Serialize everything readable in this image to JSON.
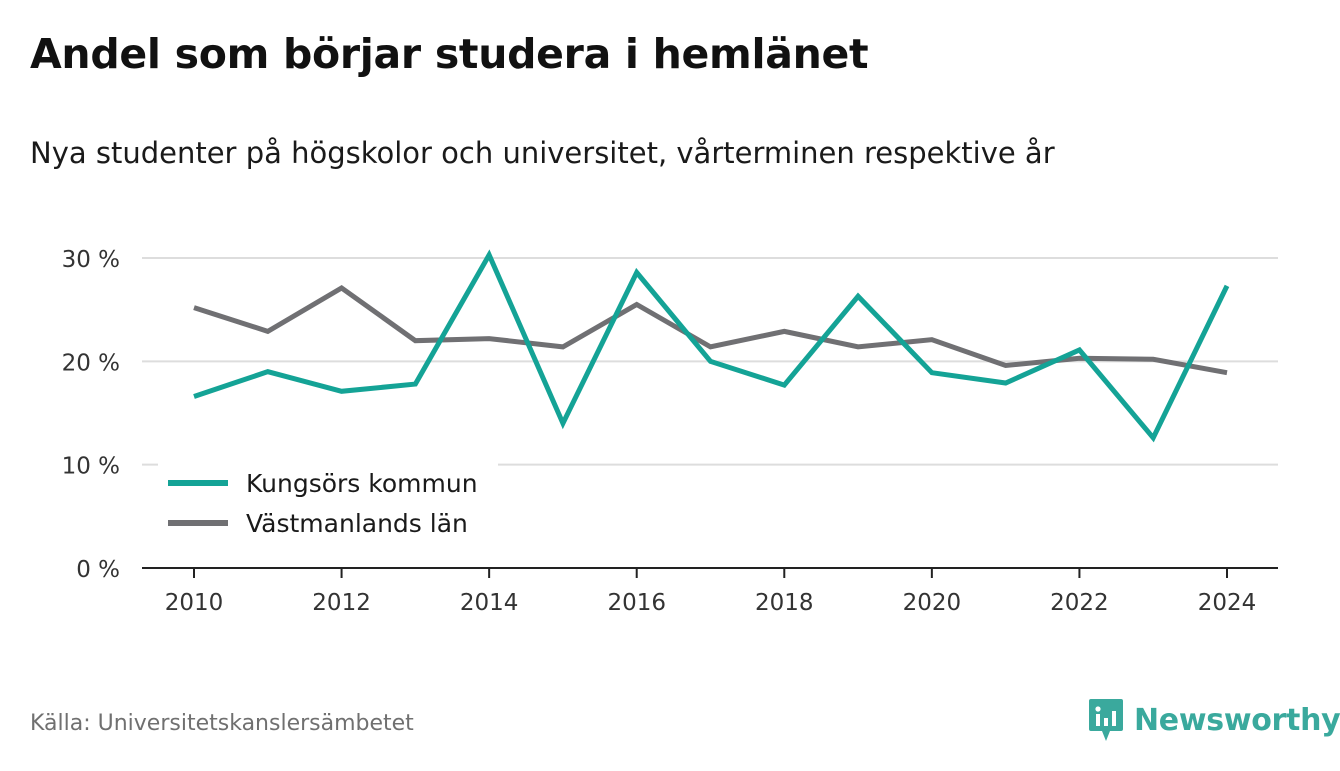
{
  "title": "Andel som börjar studera i hemlänet",
  "subtitle": "Nya studenter på högskolor och universitet, vårterminen respektive år",
  "source": "Källa: Universitetskanslersämbetet",
  "brand": {
    "name": "Newsworthy",
    "icon": "newsworthy-logo-icon"
  },
  "colors": {
    "series1": "#14a396",
    "series2": "#707073",
    "grid": "#dddddd",
    "axis": "#222222",
    "brand": "#3aa99d"
  },
  "chart_data": {
    "type": "line",
    "title": "Andel som börjar studera i hemlänet",
    "subtitle": "Nya studenter på högskolor och universitet, vårterminen respektive år",
    "x": [
      2010,
      2011,
      2012,
      2013,
      2014,
      2015,
      2016,
      2017,
      2018,
      2019,
      2020,
      2021,
      2022,
      2023,
      2024
    ],
    "xticks": [
      "2010",
      "2012",
      "2014",
      "2016",
      "2018",
      "2020",
      "2022",
      "2024"
    ],
    "yticks": [
      "0 %",
      "10 %",
      "20 %",
      "30 %"
    ],
    "ylim": [
      0,
      30
    ],
    "grid": true,
    "legend": "bottom-left",
    "series": [
      {
        "name": "Kungsörs kommun",
        "color": "#14a396",
        "values": [
          16.6,
          19.0,
          17.1,
          17.8,
          30.3,
          14.0,
          28.6,
          20.0,
          17.7,
          26.3,
          18.9,
          17.9,
          21.1,
          12.6,
          27.3
        ]
      },
      {
        "name": "Västmanlands län",
        "color": "#707073",
        "values": [
          25.2,
          22.9,
          27.1,
          22.0,
          22.2,
          21.4,
          25.5,
          21.4,
          22.9,
          21.4,
          22.1,
          19.6,
          20.3,
          20.2,
          18.9
        ]
      }
    ]
  }
}
